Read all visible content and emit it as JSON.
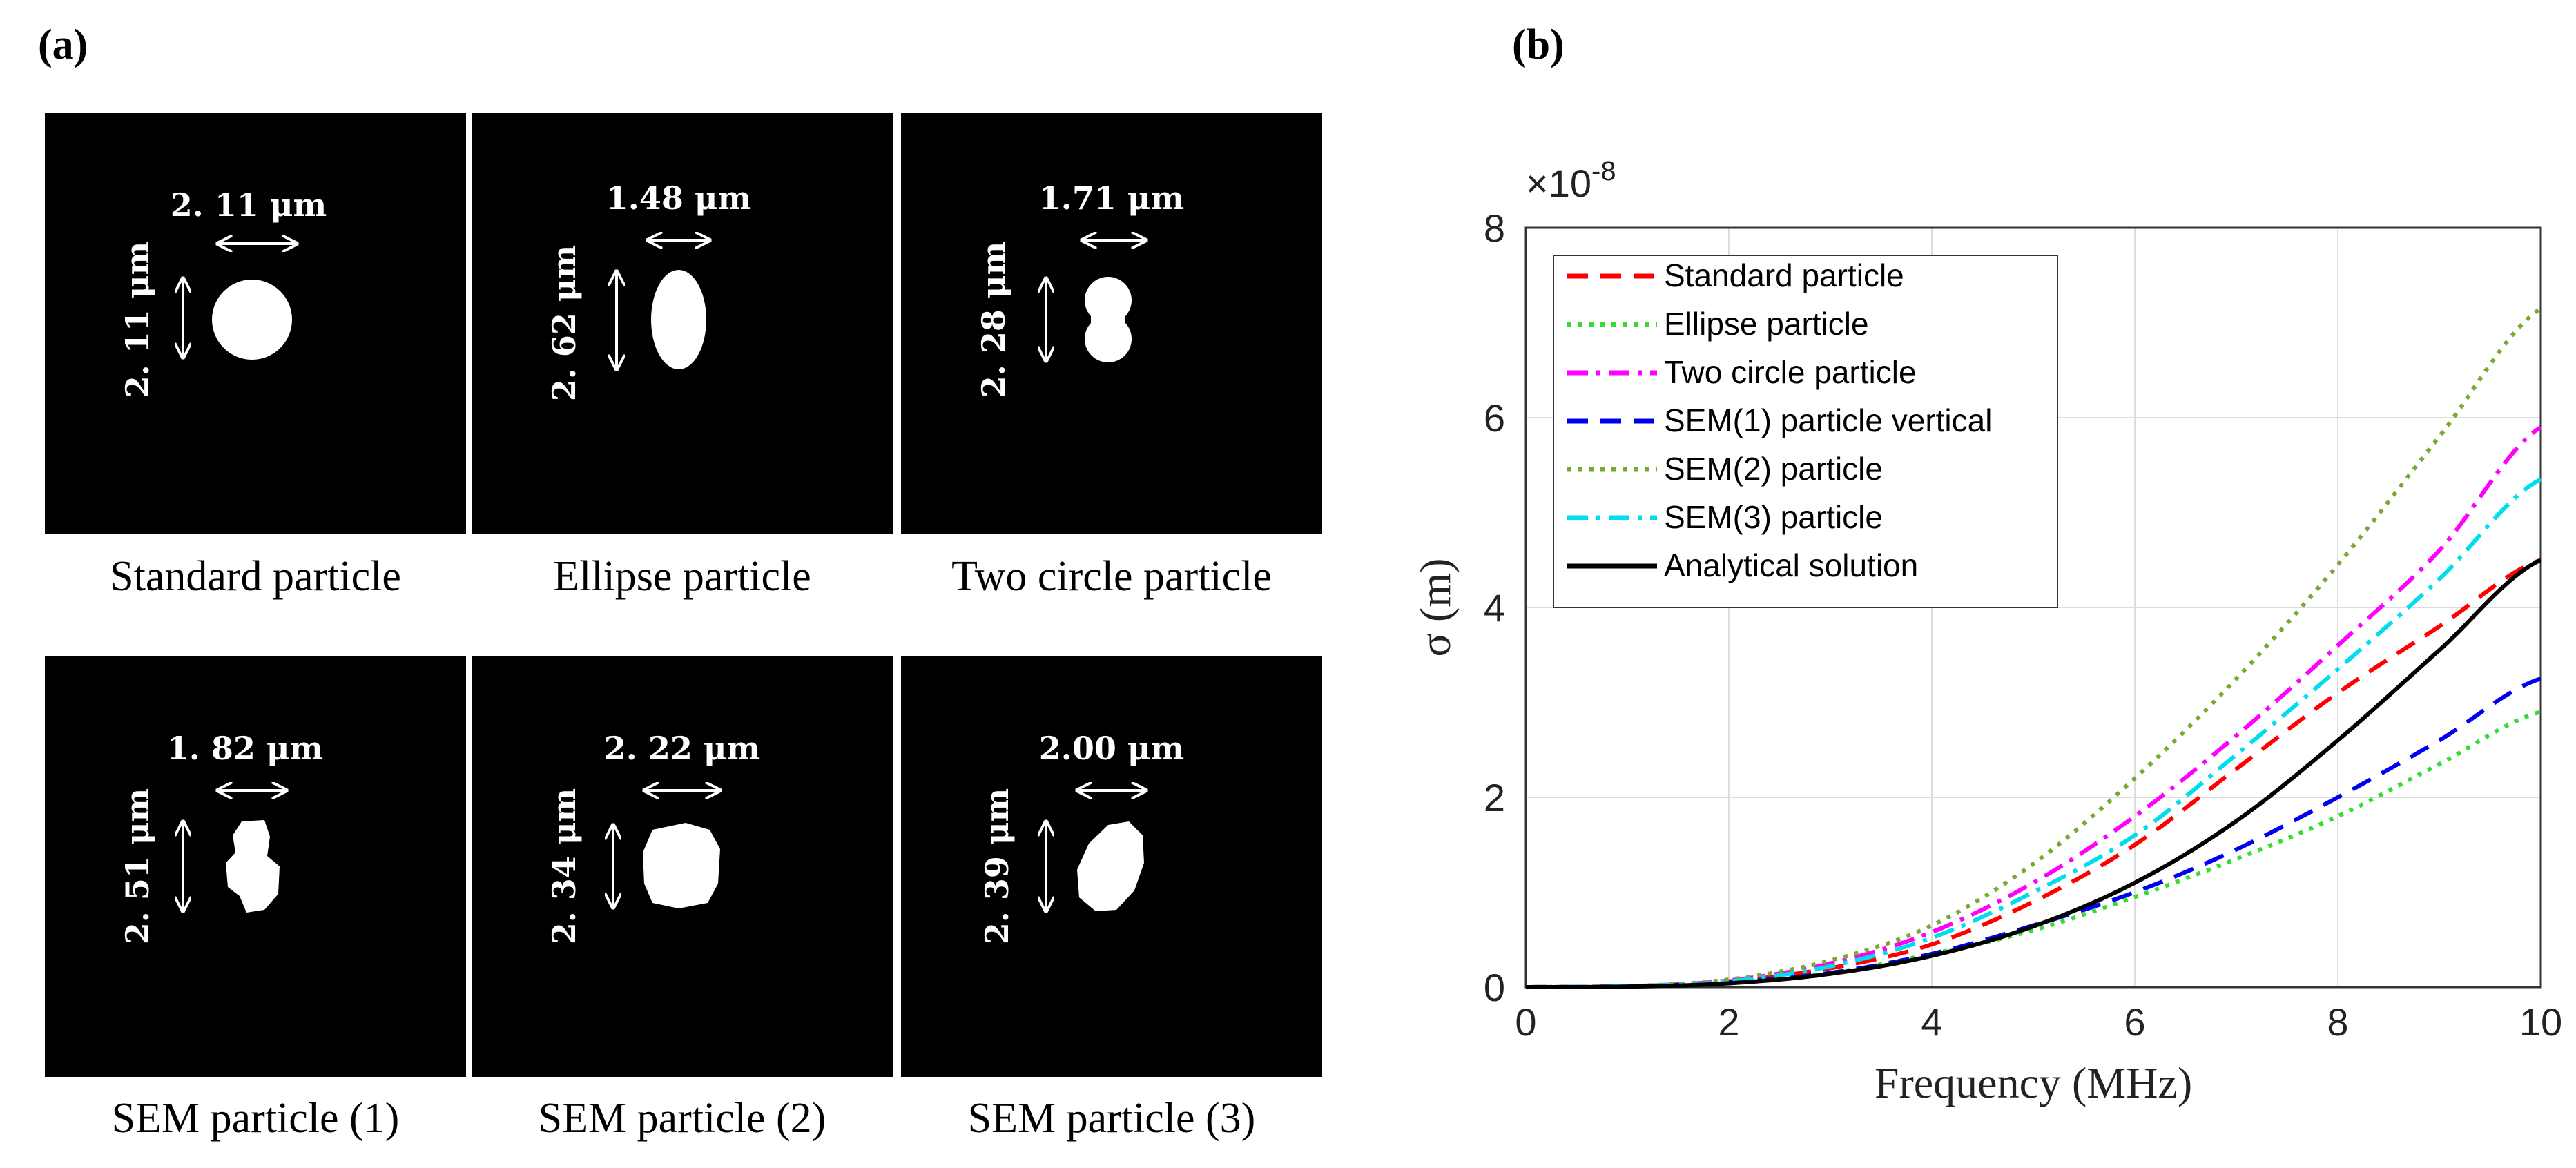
{
  "panel_a": {
    "letter": "(a)",
    "particles": [
      {
        "caption": "Standard particle",
        "width_label": "2. 11 μm",
        "height_label": "2. 11 μm"
      },
      {
        "caption": "Ellipse particle",
        "width_label": "1.48 μm",
        "height_label": "2. 62 μm"
      },
      {
        "caption": "Two circle particle",
        "width_label": "1.71 μm",
        "height_label": "2. 28 μm"
      },
      {
        "caption": "SEM particle (1)",
        "width_label": "1. 82 μm",
        "height_label": "2. 51 μm"
      },
      {
        "caption": "SEM particle (2)",
        "width_label": "2. 22 μm",
        "height_label": "2. 34 μm"
      },
      {
        "caption": "SEM particle (3)",
        "width_label": "2.00 μm",
        "height_label": "2. 39 μm"
      }
    ]
  },
  "panel_b": {
    "letter": "(b)"
  },
  "chart_data": {
    "type": "line",
    "xlabel": "Frequency (MHz)",
    "ylabel": "σ (m)",
    "exponent_label": "×10",
    "exponent_power": "-8",
    "xlim": [
      0,
      10
    ],
    "ylim": [
      0,
      8
    ],
    "xticks": [
      0,
      2,
      4,
      6,
      8,
      10
    ],
    "yticks": [
      0,
      2,
      4,
      6,
      8
    ],
    "grid": true,
    "legend_position": "top-left",
    "x": [
      0,
      1,
      2,
      3,
      4,
      5,
      6,
      7,
      8,
      9,
      10
    ],
    "series": [
      {
        "name": "Standard particle",
        "color": "#ff0000",
        "dash": "dashed",
        "values": [
          0,
          0.01,
          0.06,
          0.2,
          0.45,
          0.9,
          1.5,
          2.3,
          3.1,
          3.8,
          4.5
        ]
      },
      {
        "name": "Ellipse particle",
        "color": "#33dd33",
        "dash": "dotted",
        "values": [
          0,
          0.01,
          0.05,
          0.15,
          0.35,
          0.6,
          0.95,
          1.35,
          1.8,
          2.35,
          2.9
        ]
      },
      {
        "name": "Two circle particle",
        "color": "#ff00ff",
        "dash": "dashdot",
        "values": [
          0,
          0.01,
          0.07,
          0.25,
          0.58,
          1.1,
          1.8,
          2.65,
          3.6,
          4.6,
          5.9
        ]
      },
      {
        "name": "SEM(1) particle vertical",
        "color": "#0000ee",
        "dash": "dashed",
        "values": [
          0,
          0.01,
          0.05,
          0.15,
          0.35,
          0.65,
          1.0,
          1.45,
          2.0,
          2.6,
          3.25
        ]
      },
      {
        "name": "SEM(2) particle",
        "color": "#77aa33",
        "dash": "dotted",
        "values": [
          0,
          0.01,
          0.08,
          0.28,
          0.65,
          1.3,
          2.2,
          3.25,
          4.45,
          5.8,
          7.15
        ]
      },
      {
        "name": "SEM(3) particle",
        "color": "#00ddee",
        "dash": "dashdot",
        "values": [
          0,
          0.01,
          0.06,
          0.22,
          0.52,
          1.0,
          1.6,
          2.45,
          3.35,
          4.3,
          5.35
        ]
      },
      {
        "name": "Analytical solution",
        "color": "#000000",
        "dash": "solid",
        "values": [
          0,
          0.005,
          0.04,
          0.14,
          0.33,
          0.64,
          1.1,
          1.75,
          2.6,
          3.55,
          4.5
        ]
      }
    ]
  }
}
